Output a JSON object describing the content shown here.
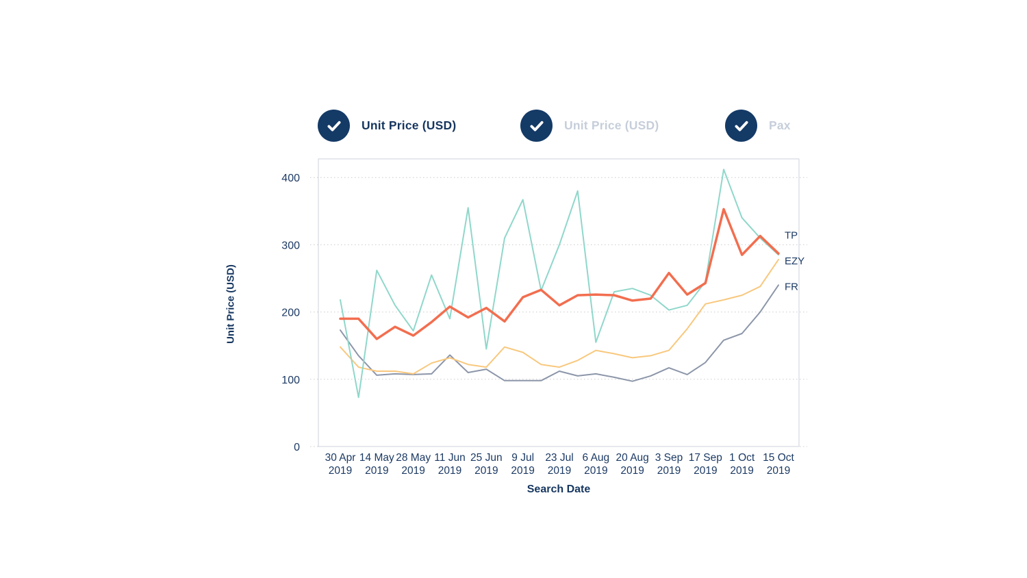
{
  "theme": {
    "navy": "#16365F",
    "inactive_gray": "#C6CEDA",
    "check_circle": "#143A66",
    "background": "#FFFFFF"
  },
  "toggles": [
    {
      "label": "Unit Price (USD)",
      "active": true,
      "checked": true
    },
    {
      "label": "Unit Price (USD)",
      "active": false,
      "checked": true
    },
    {
      "label": "Pax",
      "active": false,
      "checked": true
    }
  ],
  "chart_data": {
    "type": "line",
    "title": "",
    "xlabel": "Search Date",
    "ylabel": "Unit Price (USD)",
    "ylim": [
      0,
      430
    ],
    "yticks": [
      0,
      100,
      200,
      300,
      400
    ],
    "grid": "horizontal-dotted",
    "legend_position": "right-end-labels",
    "x_tick_labels": [
      [
        "30 Apr",
        "2019"
      ],
      [
        "14 May",
        "2019"
      ],
      [
        "28 May",
        "2019"
      ],
      [
        "11 Jun",
        "2019"
      ],
      [
        "25 Jun",
        "2019"
      ],
      [
        "9 Jul",
        "2019"
      ],
      [
        "23 Jul",
        "2019"
      ],
      [
        "6 Aug",
        "2019"
      ],
      [
        "20 Aug",
        "2019"
      ],
      [
        "3 Sep",
        "2019"
      ],
      [
        "17 Sep",
        "2019"
      ],
      [
        "1 Oct",
        "2019"
      ],
      [
        "15 Oct",
        "2019"
      ]
    ],
    "series": [
      {
        "name": "FR",
        "color": "#8C96A9",
        "width": 2,
        "values": [
          173,
          135,
          106,
          108,
          107,
          108,
          136,
          110,
          115,
          98,
          98,
          98,
          112,
          105,
          108,
          103,
          97,
          105,
          117,
          107,
          125,
          158,
          168,
          200,
          240
        ]
      },
      {
        "name": "EZY",
        "color": "#F8C87D",
        "width": 2,
        "values": [
          148,
          118,
          112,
          112,
          108,
          124,
          132,
          122,
          118,
          148,
          140,
          122,
          118,
          128,
          143,
          138,
          132,
          135,
          143,
          175,
          212,
          218,
          225,
          238,
          278
        ]
      },
      {
        "name": "Pax",
        "color": "#8FD7CA",
        "width": 2,
        "values": [
          218,
          73,
          262,
          210,
          172,
          255,
          190,
          355,
          145,
          310,
          367,
          232,
          300,
          380,
          155,
          230,
          235,
          225,
          203,
          210,
          245,
          412,
          340,
          310,
          285
        ]
      },
      {
        "name": "TP",
        "color": "#F26E4F",
        "width": 3.5,
        "values": [
          190,
          190,
          160,
          178,
          165,
          185,
          208,
          192,
          206,
          186,
          222,
          233,
          210,
          225,
          226,
          225,
          217,
          220,
          258,
          226,
          243,
          353,
          285,
          313,
          287
        ]
      }
    ],
    "end_labels": [
      {
        "text": "TP",
        "value": 314
      },
      {
        "text": "EZY",
        "value": 276
      },
      {
        "text": "FR",
        "value": 238
      }
    ],
    "colors": {
      "grid": "#CCCCCC",
      "frame": "#CCD2DB",
      "axis_text": "#1C3A64"
    }
  }
}
